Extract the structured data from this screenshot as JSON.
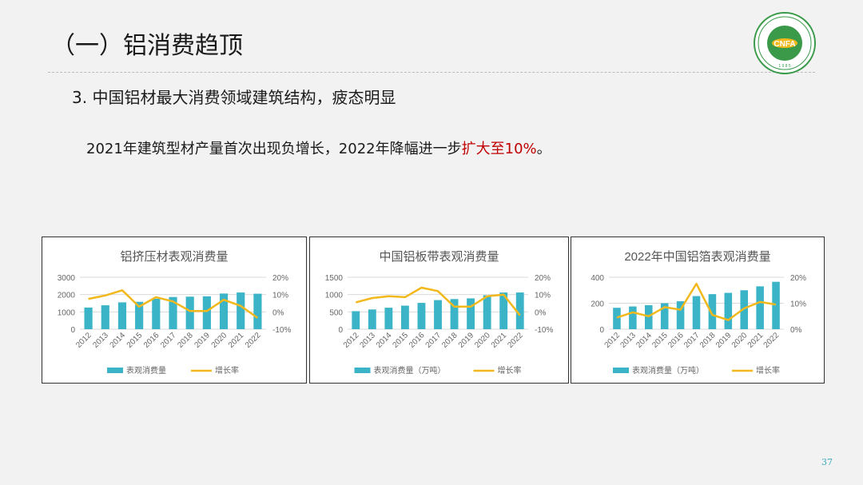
{
  "slide": {
    "title": "（一）铝消费趋顶",
    "subtitle": "3. 中国铝材最大消费领域建筑结构，疲态明显",
    "body_prefix": "2021年建筑型材产量首次出现负增长，2022年降幅进一步",
    "body_highlight": "扩大至10%",
    "body_suffix": "。",
    "page_number": "37",
    "highlight_color": "#c00000"
  },
  "colors": {
    "bar": "#3bb4c8",
    "line": "#f2b81c",
    "axis_text": "#666666"
  },
  "logo": {
    "icon": "cnfa-association-logo",
    "text": "CNFA",
    "year": "1 9 8 5"
  },
  "chart_data": [
    {
      "type": "bar",
      "title": "铝挤压材表观消费量",
      "categories": [
        "2012",
        "2013",
        "2014",
        "2015",
        "2016",
        "2017",
        "2018",
        "2019",
        "2020",
        "2021",
        "2022"
      ],
      "series": [
        {
          "name": "表观消费量",
          "type": "bar",
          "axis": "left",
          "values": [
            1250,
            1380,
            1550,
            1580,
            1760,
            1860,
            1880,
            1900,
            2060,
            2120,
            2050
          ]
        },
        {
          "name": "增长率",
          "type": "line",
          "axis": "right",
          "values": [
            7.5,
            9.5,
            12.5,
            3.0,
            8.5,
            6.0,
            0.5,
            0.5,
            7.0,
            3.5,
            -3.5
          ]
        }
      ],
      "y_left": {
        "min": 0,
        "max": 3000,
        "ticks": [
          0,
          1000,
          2000,
          3000
        ],
        "labels": [
          "0",
          "1000",
          "2000",
          "3000"
        ]
      },
      "y_right": {
        "min": -10,
        "max": 20,
        "ticks": [
          -10,
          0,
          10,
          20
        ],
        "labels": [
          "-10%",
          "0%",
          "10%",
          "20%"
        ]
      },
      "legend_position": "bottom",
      "grid": true
    },
    {
      "type": "bar",
      "title": "中国铝板带表观消费量",
      "categories": [
        "2012",
        "2013",
        "2014",
        "2015",
        "2016",
        "2017",
        "2018",
        "2019",
        "2020",
        "2021",
        "2022"
      ],
      "series": [
        {
          "name": "表观消费量（万吨）",
          "type": "bar",
          "axis": "left",
          "values": [
            520,
            570,
            620,
            680,
            760,
            840,
            870,
            890,
            980,
            1060,
            1060
          ]
        },
        {
          "name": "增长率",
          "type": "line",
          "axis": "right",
          "values": [
            5.5,
            8.0,
            9.0,
            8.5,
            14.0,
            12.0,
            3.0,
            3.0,
            9.0,
            10.0,
            -2.0
          ]
        }
      ],
      "y_left": {
        "min": 0,
        "max": 1500,
        "ticks": [
          0,
          500,
          1000,
          1500
        ],
        "labels": [
          "0",
          "500",
          "1000",
          "1500"
        ]
      },
      "y_right": {
        "min": -10,
        "max": 20,
        "ticks": [
          -10,
          0,
          10,
          20
        ],
        "labels": [
          "-10%",
          "0%",
          "10%",
          "20%"
        ]
      },
      "legend_position": "bottom",
      "grid": true
    },
    {
      "type": "bar",
      "title": "2022年中国铝箔表观消费量",
      "categories": [
        "2012",
        "2013",
        "2014",
        "2015",
        "2016",
        "2017",
        "2018",
        "2019",
        "2020",
        "2021",
        "2022"
      ],
      "series": [
        {
          "name": "表观消费量（万吨）",
          "type": "bar",
          "axis": "left",
          "values": [
            165,
            175,
            185,
            200,
            215,
            255,
            270,
            280,
            300,
            330,
            365
          ]
        },
        {
          "name": "增长率",
          "type": "line",
          "axis": "right",
          "values": [
            4.5,
            6.5,
            5.0,
            8.5,
            7.5,
            17.5,
            5.5,
            3.5,
            8.0,
            10.5,
            9.5
          ]
        }
      ],
      "y_left": {
        "min": 0,
        "max": 400,
        "ticks": [
          0,
          200,
          400
        ],
        "labels": [
          "0",
          "200",
          "400"
        ]
      },
      "y_right": {
        "min": 0,
        "max": 20,
        "ticks": [
          0,
          10,
          20
        ],
        "labels": [
          "0%",
          "10%",
          "20%"
        ]
      },
      "legend_position": "bottom",
      "grid": true
    }
  ]
}
